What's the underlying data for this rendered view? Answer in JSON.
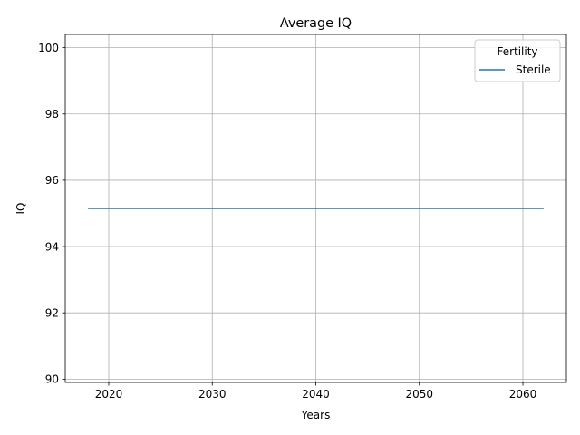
{
  "chart_data": {
    "type": "line",
    "title": "Average IQ",
    "xlabel": "Years",
    "ylabel": "IQ",
    "xlim": [
      2015.8,
      2064.2
    ],
    "ylim": [
      89.9,
      100.4
    ],
    "xticks": [
      2020,
      2030,
      2040,
      2050,
      2060
    ],
    "yticks": [
      90,
      92,
      94,
      96,
      98,
      100
    ],
    "grid": true,
    "legend": {
      "title": "Fertility",
      "position": "top-right"
    },
    "series": [
      {
        "name": "Sterile",
        "color": "#1f77b4",
        "x": [
          2018,
          2062
        ],
        "y": [
          95.15,
          95.15
        ]
      }
    ]
  }
}
